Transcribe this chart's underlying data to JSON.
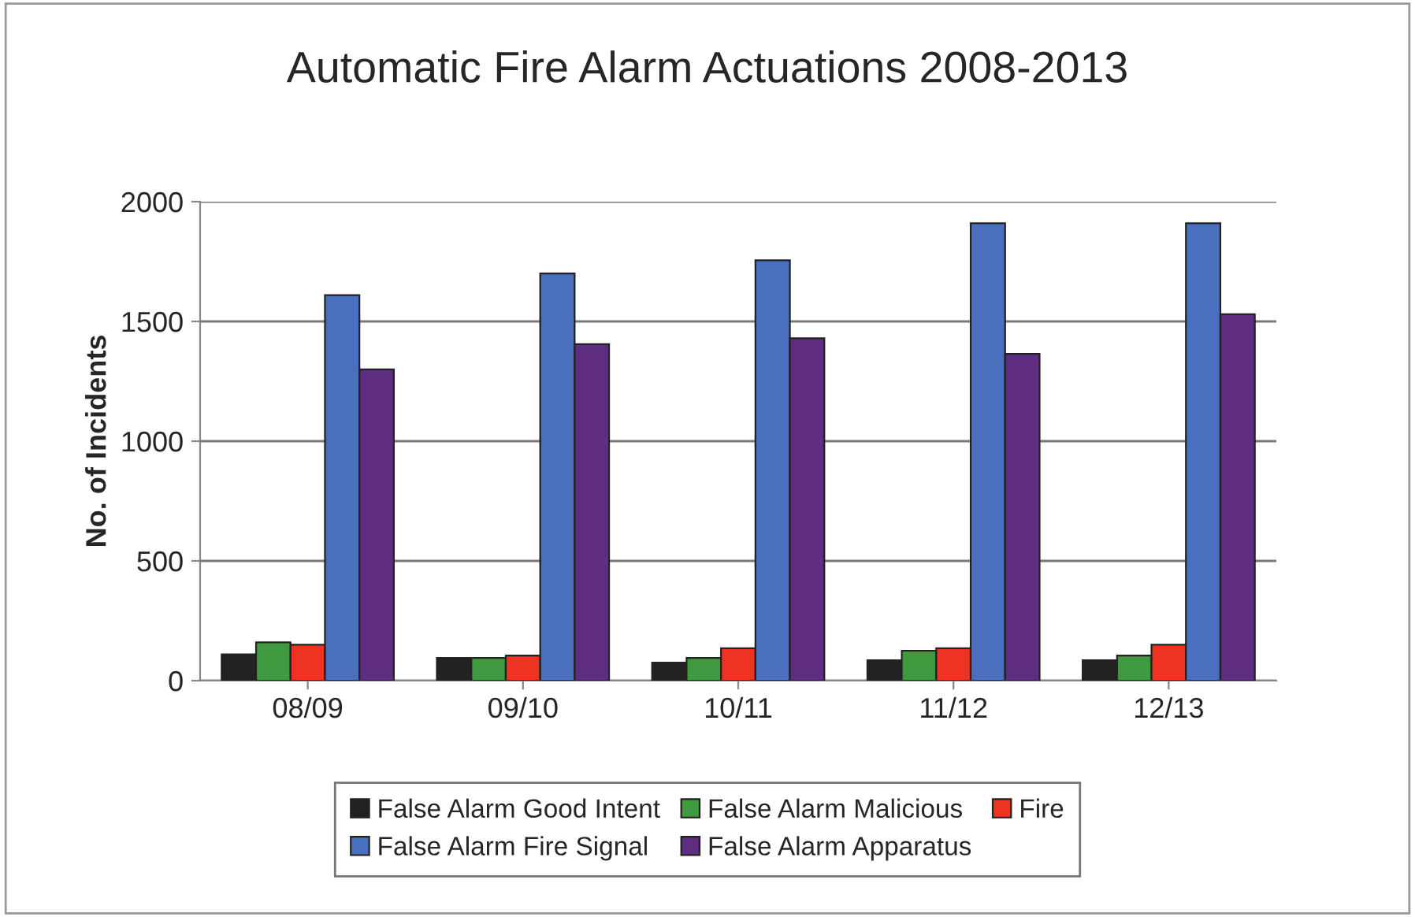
{
  "chart_data": {
    "type": "bar",
    "title": "Automatic Fire Alarm Actuations 2008-2013",
    "ylabel": "No. of Incidents",
    "categories": [
      "08/09",
      "09/10",
      "10/11",
      "11/12",
      "12/13"
    ],
    "series": [
      {
        "name": "False Alarm Good Intent",
        "color": "#222222",
        "values": [
          110,
          95,
          75,
          85,
          85
        ]
      },
      {
        "name": "False Alarm Malicious",
        "color": "#3f9a3f",
        "values": [
          160,
          95,
          95,
          125,
          105
        ]
      },
      {
        "name": "Fire",
        "color": "#ee3322",
        "values": [
          150,
          105,
          135,
          135,
          150
        ]
      },
      {
        "name": "False Alarm Fire Signal",
        "color": "#4a6fbf",
        "values": [
          1610,
          1700,
          1755,
          1910,
          1910
        ]
      },
      {
        "name": "False Alarm Apparatus",
        "color": "#5e2d82",
        "values": [
          1300,
          1405,
          1430,
          1365,
          1530
        ]
      }
    ],
    "ylim": [
      0,
      2000
    ],
    "yticks": [
      0,
      500,
      1000,
      1500,
      2000
    ],
    "grid": "y",
    "legend": "bottom"
  }
}
